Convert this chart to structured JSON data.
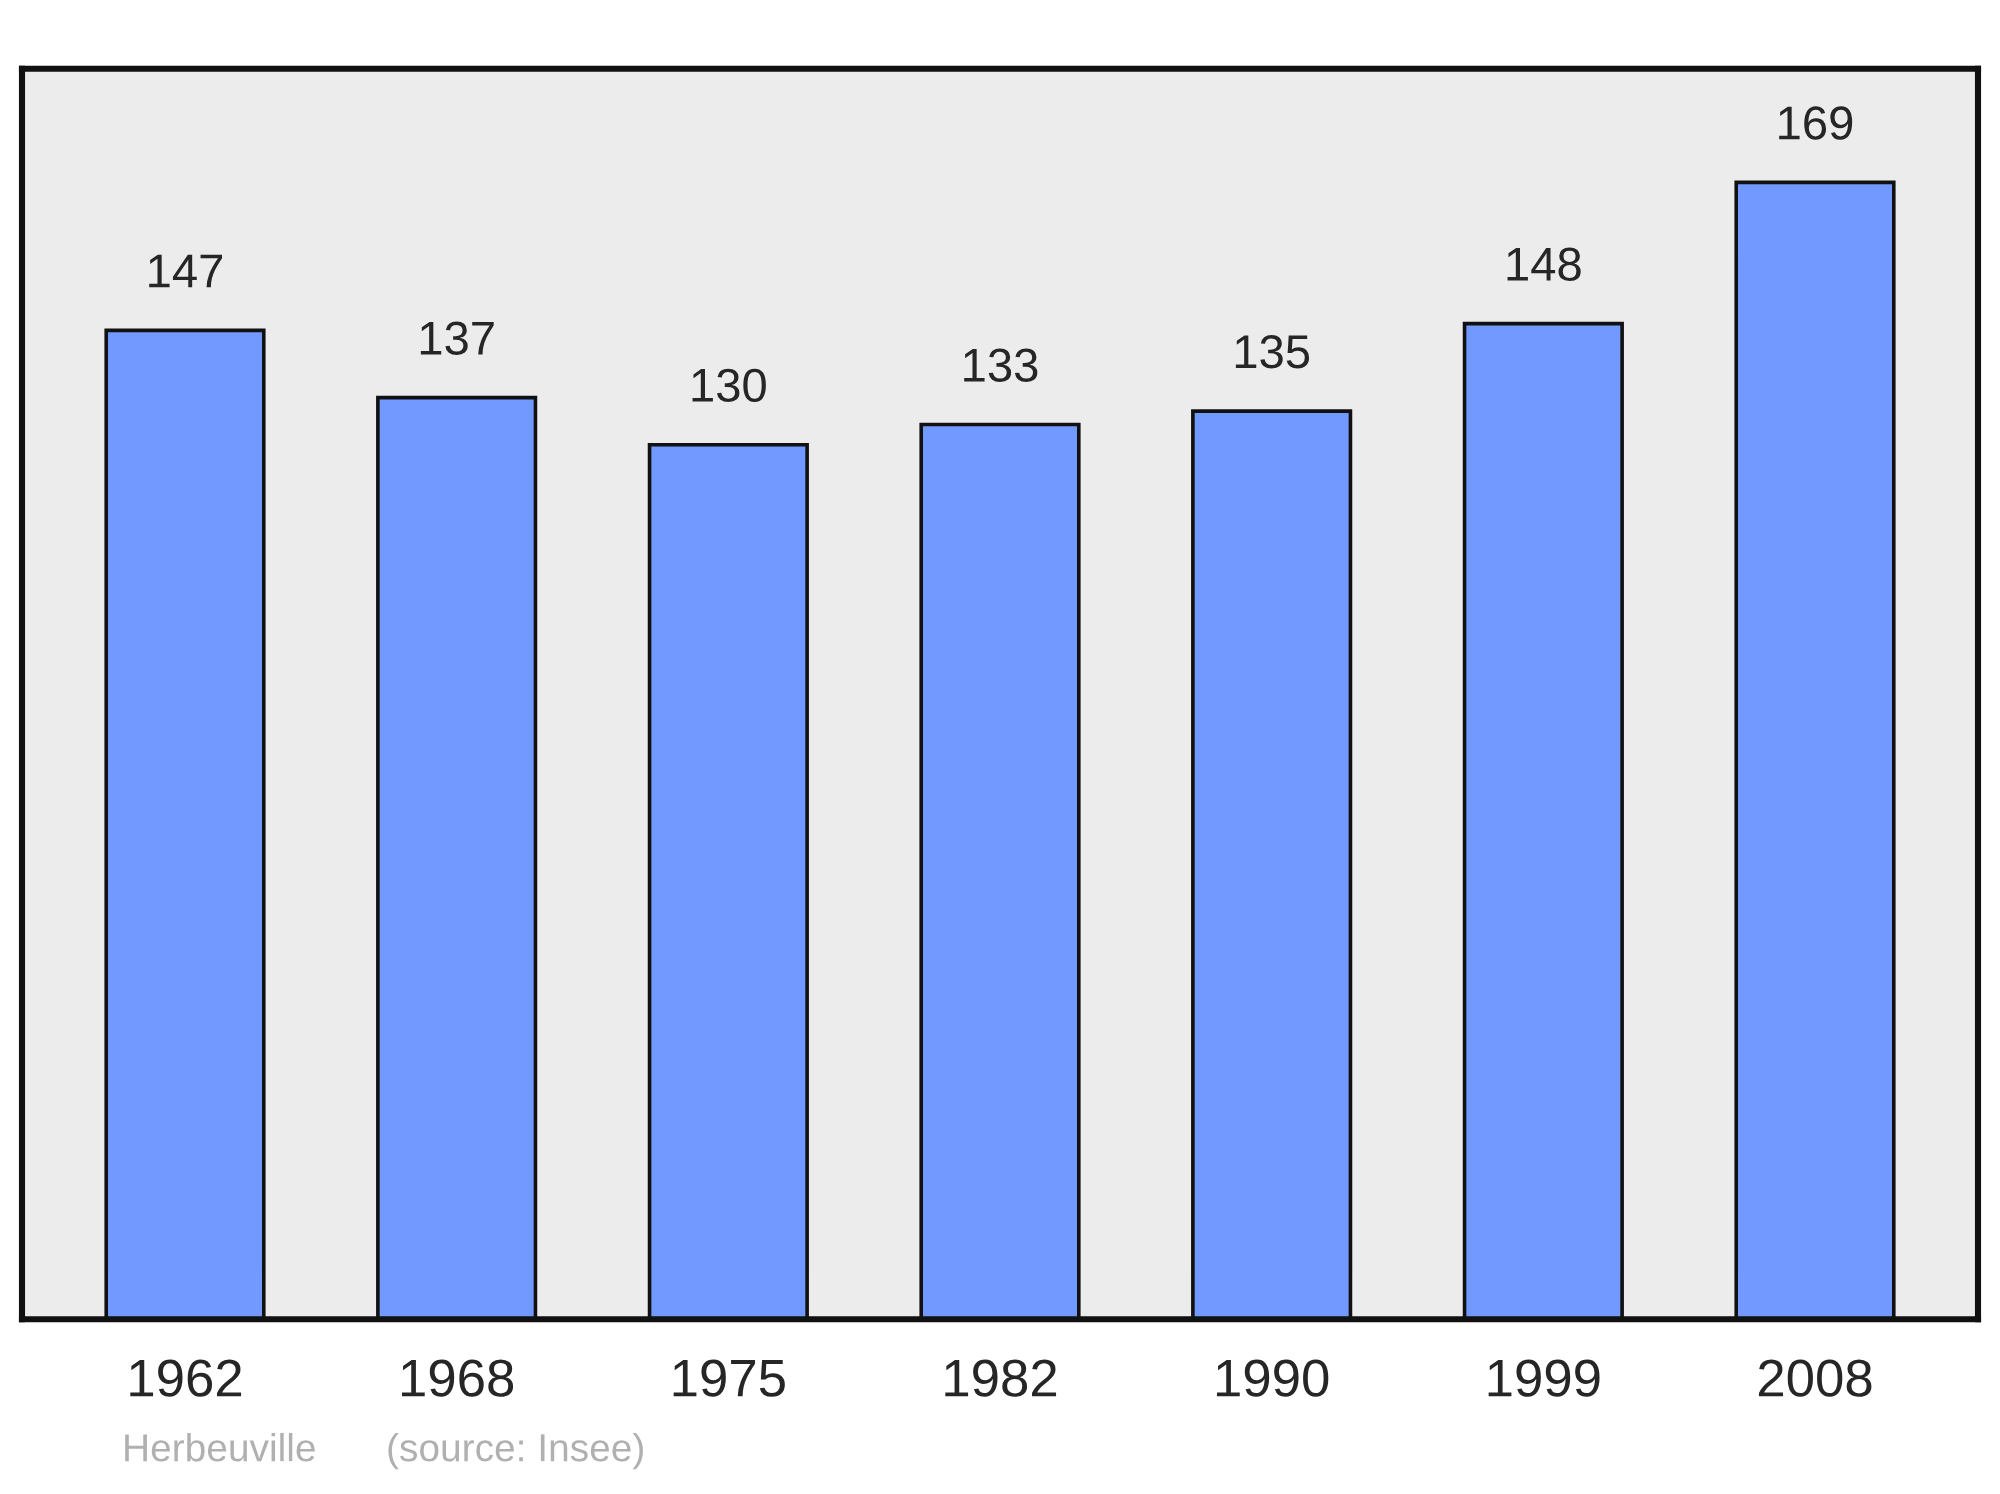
{
  "chart_data": {
    "type": "bar",
    "categories": [
      "1962",
      "1968",
      "1975",
      "1982",
      "1990",
      "1999",
      "2008"
    ],
    "values": [
      147,
      137,
      130,
      133,
      135,
      148,
      169
    ],
    "color": "#7299ff",
    "data_labels": true,
    "grid": false,
    "legend": false,
    "annotations": [
      "Herbeuville",
      "(source: Insee)"
    ]
  }
}
